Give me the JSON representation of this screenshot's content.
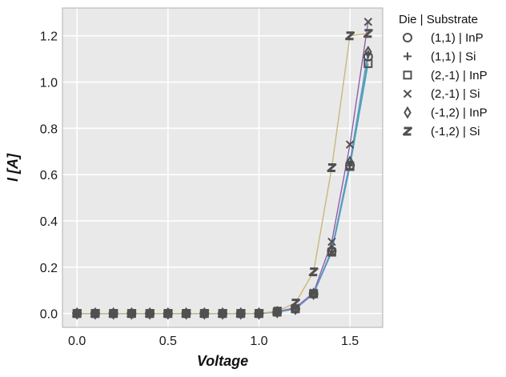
{
  "chart_data": {
    "type": "line",
    "title": "",
    "xlabel": "Voltage",
    "ylabel": "I [A]",
    "xlim": [
      -0.08,
      1.68
    ],
    "ylim": [
      -0.06,
      1.32
    ],
    "xticks": [
      "0.0",
      "0.5",
      "1.0",
      "1.5"
    ],
    "xtick_values": [
      0.0,
      0.5,
      1.0,
      1.5
    ],
    "yticks": [
      "0.0",
      "0.2",
      "0.4",
      "0.6",
      "0.8",
      "1.0",
      "1.2"
    ],
    "ytick_values": [
      0.0,
      0.2,
      0.4,
      0.6,
      0.8,
      1.0,
      1.2
    ],
    "grid": true,
    "legend_title": "Die | Substrate",
    "legend_position": "outside-right",
    "x": [
      0.0,
      0.1,
      0.2,
      0.3,
      0.4,
      0.5,
      0.6,
      0.7,
      0.8,
      0.9,
      1.0,
      1.1,
      1.2,
      1.3,
      1.4,
      1.5,
      1.6
    ],
    "series": [
      {
        "name": "(1,1) | InP",
        "marker": "circle",
        "color": "#4c9bd0",
        "values": [
          0,
          0,
          0,
          0,
          0,
          0,
          0,
          0,
          0,
          0,
          0,
          0.006,
          0.02,
          0.085,
          0.27,
          0.64,
          1.11
        ]
      },
      {
        "name": "(1,1) | Si",
        "marker": "plus",
        "color": "#5fb3a0",
        "values": [
          0,
          0,
          0,
          0,
          0,
          0,
          0,
          0,
          0,
          0,
          0,
          0.006,
          0.02,
          0.085,
          0.27,
          0.64,
          1.12
        ]
      },
      {
        "name": "(2,-1) | InP",
        "marker": "square",
        "color": "#3da7b8",
        "values": [
          0,
          0,
          0,
          0,
          0,
          0,
          0,
          0,
          0,
          0,
          0,
          0.006,
          0.02,
          0.085,
          0.265,
          0.635,
          1.08
        ]
      },
      {
        "name": "(2,-1) | Si",
        "marker": "x",
        "color": "#8a62a8",
        "values": [
          0,
          0,
          0,
          0,
          0,
          0,
          0,
          0,
          0,
          0,
          0,
          0.008,
          0.025,
          0.09,
          0.31,
          0.73,
          1.26
        ]
      },
      {
        "name": "(-1,2) | InP",
        "marker": "diamond",
        "color": "#6a8fc8",
        "values": [
          0,
          0,
          0,
          0,
          0,
          0,
          0,
          0,
          0,
          0,
          0,
          0.006,
          0.02,
          0.085,
          0.275,
          0.655,
          1.13
        ]
      },
      {
        "name": "(-1,2) | Si",
        "marker": "z",
        "color": "#c8b87a",
        "values": [
          0,
          0,
          0,
          0,
          0,
          0,
          0,
          0,
          0,
          0,
          0,
          0.01,
          0.045,
          0.18,
          0.63,
          1.2,
          1.21
        ]
      }
    ],
    "colors": {
      "panel_bg": "#e9e9e9",
      "grid": "#ffffff",
      "marker": "#505050",
      "frame": "#b0b0b0"
    }
  }
}
